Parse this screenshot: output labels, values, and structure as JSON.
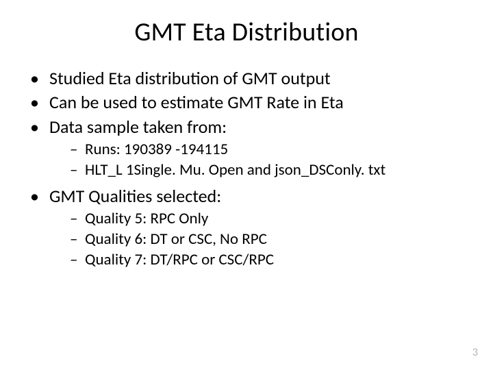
{
  "colors": {
    "background": "#ffffff",
    "text": "#000000",
    "pagenum": "#b9b2aa"
  },
  "typography": {
    "title_fontsize": 38,
    "body_fontsize": 26,
    "sub_fontsize": 23,
    "pagenum_fontsize": 16,
    "font_family": "Calibri"
  },
  "title": "GMT Eta Distribution",
  "bullets": [
    {
      "text": "Studied Eta distribution of GMT output"
    },
    {
      "text": "Can be used to estimate GMT Rate in Eta"
    },
    {
      "text": "Data sample taken from:",
      "children": [
        "Runs: 190389 -194115",
        "HLT_L 1Single. Mu. Open and json_DSConly. txt"
      ]
    },
    {
      "text": "GMT Qualities selected:",
      "children": [
        "Quality 5: RPC Only",
        "Quality 6: DT or CSC, No RPC",
        "Quality 7: DT/RPC or CSC/RPC"
      ]
    }
  ],
  "page_number": "3"
}
